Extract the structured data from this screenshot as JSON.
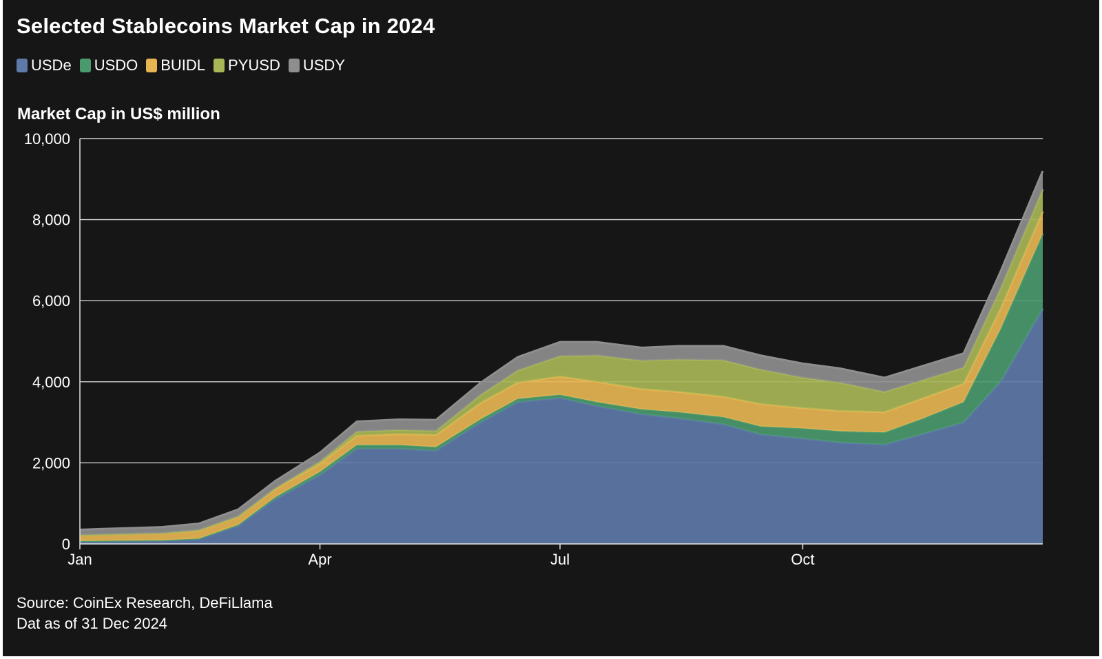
{
  "header": {
    "title": "Selected Stablecoins Market Cap in 2024"
  },
  "footer": {
    "source": "Source: CoinEx Research, DeFiLlama",
    "date_note": "Dat as of 31 Dec 2024"
  },
  "chart_data": {
    "type": "area",
    "stacked": true,
    "ylabel": "Market Cap in US$ million",
    "ylim": [
      0,
      10000
    ],
    "yticks": [
      0,
      2000,
      4000,
      6000,
      8000,
      10000
    ],
    "ytick_labels": [
      "0",
      "2,000",
      "4,000",
      "6,000",
      "8,000",
      "10,000"
    ],
    "xlim": [
      "2024-01-01",
      "2024-12-31"
    ],
    "xticks": [
      "2024-01-01",
      "2024-04-01",
      "2024-07-01",
      "2024-10-01"
    ],
    "xtick_labels": [
      "Jan",
      "Apr",
      "Jul",
      "Oct"
    ],
    "grid": "horizontal",
    "legend_position": "top-left",
    "x": [
      "2024-01-01",
      "2024-01-15",
      "2024-02-01",
      "2024-02-15",
      "2024-03-01",
      "2024-03-15",
      "2024-04-01",
      "2024-04-15",
      "2024-05-01",
      "2024-05-15",
      "2024-06-01",
      "2024-06-15",
      "2024-07-01",
      "2024-07-15",
      "2024-08-01",
      "2024-08-15",
      "2024-09-01",
      "2024-09-15",
      "2024-10-01",
      "2024-10-15",
      "2024-11-01",
      "2024-11-15",
      "2024-12-01",
      "2024-12-15",
      "2024-12-31"
    ],
    "series": [
      {
        "name": "USDe",
        "color": "#5E7AA8",
        "values": [
          60,
          70,
          80,
          120,
          450,
          1100,
          1700,
          2350,
          2350,
          2300,
          3000,
          3500,
          3600,
          3400,
          3200,
          3100,
          2950,
          2700,
          2600,
          2500,
          2450,
          2700,
          3000,
          4000,
          5800
        ]
      },
      {
        "name": "USDO",
        "color": "#4B9A6E",
        "values": [
          10,
          10,
          10,
          10,
          20,
          50,
          80,
          90,
          90,
          90,
          80,
          80,
          80,
          100,
          120,
          150,
          180,
          200,
          250,
          280,
          300,
          380,
          500,
          1300,
          1850
        ]
      },
      {
        "name": "BUIDL",
        "color": "#E6B552",
        "values": [
          150,
          160,
          170,
          200,
          200,
          200,
          200,
          230,
          270,
          300,
          400,
          400,
          450,
          500,
          500,
          500,
          500,
          550,
          500,
          500,
          500,
          500,
          450,
          500,
          550
        ]
      },
      {
        "name": "PYUSD",
        "color": "#A9B656",
        "values": [
          0,
          0,
          5,
          10,
          10,
          20,
          50,
          100,
          100,
          100,
          200,
          300,
          500,
          650,
          700,
          800,
          900,
          850,
          750,
          700,
          500,
          450,
          400,
          500,
          550
        ]
      },
      {
        "name": "USDY",
        "color": "#8E8E8E",
        "values": [
          130,
          140,
          150,
          160,
          170,
          180,
          220,
          250,
          260,
          270,
          300,
          330,
          350,
          330,
          320,
          330,
          350,
          350,
          350,
          350,
          350,
          350,
          350,
          420,
          450
        ]
      }
    ]
  }
}
